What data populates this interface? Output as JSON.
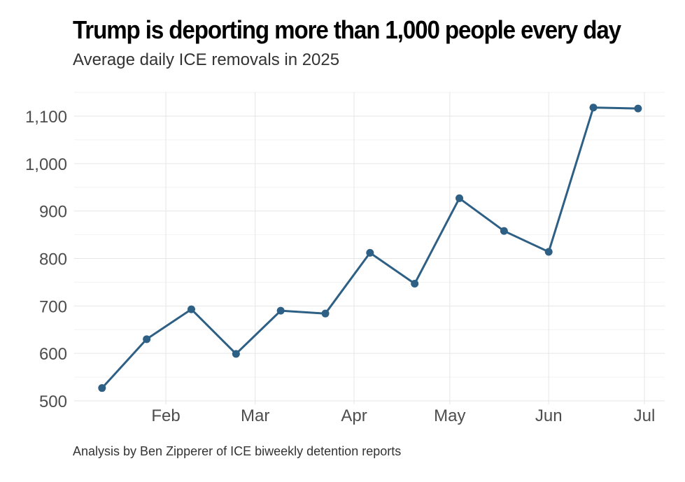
{
  "chart_data": {
    "type": "line",
    "title": "Trump is deporting more than 1,000 people every day",
    "subtitle": "Average daily ICE removals in 2025",
    "caption": "Analysis by Ben Zipperer of ICE biweekly detention reports",
    "xlabel": "",
    "ylabel": "",
    "ylim": [
      500,
      1150
    ],
    "xlim": [
      "2025-01-08",
      "2025-07-03"
    ],
    "grid": true,
    "y_ticks": [
      500,
      600,
      700,
      800,
      900,
      1000,
      1100
    ],
    "y_tick_labels": [
      "500",
      "600",
      "700",
      "800",
      "900",
      "1,000",
      "1,100"
    ],
    "x_ticks": [
      "2025-02-01",
      "2025-03-01",
      "2025-04-01",
      "2025-05-01",
      "2025-06-01",
      "2025-07-01"
    ],
    "x_tick_labels": [
      "Feb",
      "Mar",
      "Apr",
      "May",
      "Jun",
      "Jul"
    ],
    "series": [
      {
        "name": "Average daily ICE removals",
        "color": "#2e5f84",
        "x": [
          "2025-01-12",
          "2025-01-26",
          "2025-02-09",
          "2025-02-23",
          "2025-03-09",
          "2025-03-23",
          "2025-04-06",
          "2025-04-20",
          "2025-05-04",
          "2025-05-18",
          "2025-06-01",
          "2025-06-15",
          "2025-06-29"
        ],
        "values": [
          527,
          630,
          693,
          599,
          690,
          684,
          812,
          747,
          927,
          858,
          814,
          1118,
          1116
        ]
      }
    ]
  }
}
